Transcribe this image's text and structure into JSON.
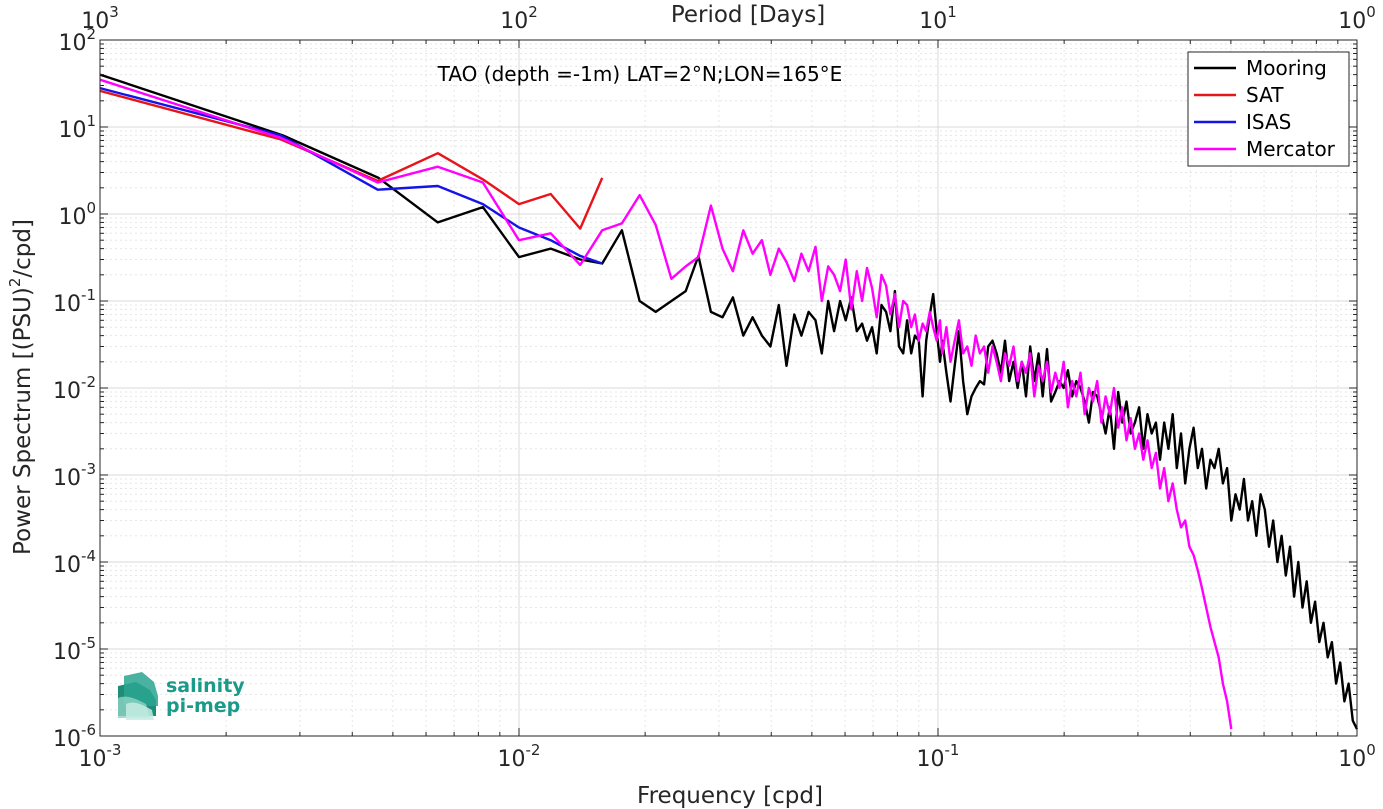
{
  "chart_data": {
    "type": "line",
    "title": "TAO (depth =-1m) LAT=2°N;LON=165°E",
    "xlabel": "Frequency [cpd]",
    "ylabel_base": "Power Spectrum [(PSU)",
    "ylabel_sup": "2",
    "ylabel_tail": "/cpd]",
    "top_xlabel": "Period [Days]",
    "x_scale": "log",
    "y_scale": "log",
    "xlim": [
      0.001,
      1
    ],
    "ylim": [
      1e-06,
      100
    ],
    "grid": true,
    "legend_position": "top-right",
    "xticks": [
      {
        "value": 0.001,
        "base": "10",
        "exp": "-3"
      },
      {
        "value": 0.01,
        "base": "10",
        "exp": "-2"
      },
      {
        "value": 0.1,
        "base": "10",
        "exp": "-1"
      },
      {
        "value": 1,
        "base": "10",
        "exp": "0"
      }
    ],
    "yticks": [
      {
        "value": 100,
        "base": "10",
        "exp": "2"
      },
      {
        "value": 10,
        "base": "10",
        "exp": "1"
      },
      {
        "value": 1,
        "base": "10",
        "exp": "0"
      },
      {
        "value": 0.1,
        "base": "10",
        "exp": "-1"
      },
      {
        "value": 0.01,
        "base": "10",
        "exp": "-2"
      },
      {
        "value": 0.001,
        "base": "10",
        "exp": "-3"
      },
      {
        "value": 0.0001,
        "base": "10",
        "exp": "-4"
      },
      {
        "value": 1e-05,
        "base": "10",
        "exp": "-5"
      },
      {
        "value": 1e-06,
        "base": "10",
        "exp": "-6"
      }
    ],
    "top_xticks": [
      {
        "value": 0.001,
        "base": "10",
        "exp": "3"
      },
      {
        "value": 0.01,
        "base": "10",
        "exp": "2"
      },
      {
        "value": 0.1,
        "base": "10",
        "exp": "1"
      },
      {
        "value": 1,
        "base": "10",
        "exp": "0"
      }
    ],
    "series": [
      {
        "name": "Mooring",
        "color": "#000000",
        "x": [
          0.001,
          0.00273,
          0.00462,
          0.0064,
          0.0082,
          0.01,
          0.0119,
          0.014,
          0.0158,
          0.0176,
          0.0194,
          0.0212,
          0.0231,
          0.025,
          0.0268,
          0.0287,
          0.0306,
          0.0324,
          0.0343,
          0.0361,
          0.038,
          0.0398,
          0.0417,
          0.0435,
          0.0454,
          0.0472,
          0.0491,
          0.051,
          0.0528,
          0.0547,
          0.0565,
          0.0584,
          0.0602,
          0.0621,
          0.064,
          0.0659,
          0.0677,
          0.0696,
          0.0714,
          0.0733,
          0.0752,
          0.077,
          0.0789,
          0.0807,
          0.0826,
          0.0844,
          0.0863,
          0.0881,
          0.09,
          0.0919,
          0.0937,
          0.0956,
          0.0974,
          0.0993,
          0.1011,
          0.1024,
          0.1047,
          0.1071,
          0.1096,
          0.1122,
          0.1148,
          0.1175,
          0.1202,
          0.123,
          0.1259,
          0.1288,
          0.1318,
          0.1349,
          0.138,
          0.1413,
          0.1445,
          0.1479,
          0.1514,
          0.1549,
          0.1585,
          0.1622,
          0.166,
          0.1698,
          0.1738,
          0.1778,
          0.182,
          0.1862,
          0.1905,
          0.195,
          0.1995,
          0.2042,
          0.2089,
          0.2138,
          0.2188,
          0.2239,
          0.2291,
          0.2344,
          0.2399,
          0.2455,
          0.2512,
          0.257,
          0.263,
          0.2692,
          0.2754,
          0.2818,
          0.2884,
          0.2951,
          0.302,
          0.309,
          0.3162,
          0.3236,
          0.3311,
          0.3388,
          0.3467,
          0.3548,
          0.3631,
          0.3715,
          0.3802,
          0.389,
          0.3981,
          0.4074,
          0.4169,
          0.4266,
          0.4365,
          0.4467,
          0.4571,
          0.4677,
          0.4786,
          0.4898,
          0.5012,
          0.5129,
          0.5248,
          0.537,
          0.5495,
          0.5623,
          0.5754,
          0.5888,
          0.6026,
          0.6166,
          0.631,
          0.6457,
          0.6607,
          0.6761,
          0.6918,
          0.7079,
          0.7244,
          0.7413,
          0.7586,
          0.7762,
          0.7943,
          0.8128,
          0.8318,
          0.8511,
          0.871,
          0.8913,
          0.912,
          0.9333,
          0.955,
          0.9772,
          1.0
        ],
        "y": [
          40,
          8,
          2.6,
          0.8,
          1.2,
          0.32,
          0.4,
          0.3,
          0.27,
          0.65,
          0.1,
          0.075,
          0.1,
          0.13,
          0.33,
          0.075,
          0.065,
          0.11,
          0.04,
          0.065,
          0.04,
          0.03,
          0.09,
          0.018,
          0.07,
          0.04,
          0.075,
          0.06,
          0.025,
          0.1,
          0.045,
          0.1,
          0.06,
          0.11,
          0.045,
          0.055,
          0.035,
          0.05,
          0.025,
          0.09,
          0.075,
          0.045,
          0.13,
          0.03,
          0.025,
          0.06,
          0.025,
          0.04,
          0.035,
          0.008,
          0.035,
          0.07,
          0.12,
          0.045,
          0.02,
          0.035,
          0.015,
          0.007,
          0.018,
          0.045,
          0.012,
          0.005,
          0.008,
          0.01,
          0.012,
          0.011,
          0.03,
          0.035,
          0.025,
          0.015,
          0.035,
          0.012,
          0.02,
          0.01,
          0.02,
          0.008,
          0.03,
          0.012,
          0.025,
          0.008,
          0.028,
          0.007,
          0.009,
          0.012,
          0.01,
          0.016,
          0.008,
          0.012,
          0.01,
          0.007,
          0.004,
          0.009,
          0.008,
          0.005,
          0.003,
          0.006,
          0.002,
          0.009,
          0.004,
          0.007,
          0.003,
          0.004,
          0.006,
          0.002,
          0.005,
          0.003,
          0.004,
          0.0015,
          0.004,
          0.002,
          0.005,
          0.0012,
          0.003,
          0.0008,
          0.002,
          0.0035,
          0.0012,
          0.002,
          0.0007,
          0.0015,
          0.0012,
          0.002,
          0.0008,
          0.0012,
          0.0003,
          0.0006,
          0.0004,
          0.0009,
          0.0003,
          0.0005,
          0.0002,
          0.0006,
          0.0004,
          0.00015,
          0.0003,
          0.0001,
          0.0002,
          7e-05,
          0.00015,
          4e-05,
          0.0001,
          3e-05,
          6e-05,
          2e-05,
          3.5e-05,
          1.2e-05,
          2e-05,
          8e-06,
          1.2e-05,
          4e-06,
          7e-06,
          2.5e-06,
          4e-06,
          1.5e-06,
          1.2e-06
        ]
      },
      {
        "name": "SAT",
        "color": "#e8141c",
        "x": [
          0.001,
          0.0027,
          0.0046,
          0.0064,
          0.0082,
          0.01,
          0.0119,
          0.014,
          0.0158
        ],
        "y": [
          26,
          7.2,
          2.4,
          5,
          2.5,
          1.3,
          1.7,
          0.68,
          2.6
        ]
      },
      {
        "name": "ISAS",
        "color": "#1414e8",
        "x": [
          0.001,
          0.0027,
          0.0046,
          0.0064,
          0.0082,
          0.01,
          0.0119,
          0.014,
          0.0158
        ],
        "y": [
          28,
          8,
          1.9,
          2.1,
          1.3,
          0.7,
          0.5,
          0.33,
          0.27
        ]
      },
      {
        "name": "Mercator",
        "color": "#ff00ff",
        "x": [
          0.001,
          0.0027,
          0.0046,
          0.0064,
          0.0082,
          0.01,
          0.0119,
          0.014,
          0.0158,
          0.0176,
          0.0194,
          0.0212,
          0.0231,
          0.025,
          0.0268,
          0.0287,
          0.0306,
          0.0324,
          0.0343,
          0.0361,
          0.038,
          0.0398,
          0.0417,
          0.0435,
          0.0454,
          0.0472,
          0.0491,
          0.051,
          0.0528,
          0.0547,
          0.0565,
          0.0584,
          0.0602,
          0.0621,
          0.064,
          0.0659,
          0.0677,
          0.0696,
          0.0714,
          0.0733,
          0.0752,
          0.077,
          0.0789,
          0.0807,
          0.0826,
          0.0844,
          0.0863,
          0.0881,
          0.09,
          0.0919,
          0.0937,
          0.0956,
          0.0974,
          0.0993,
          0.1011,
          0.1024,
          0.1047,
          0.1071,
          0.1096,
          0.1122,
          0.1148,
          0.1175,
          0.1202,
          0.123,
          0.1259,
          0.1288,
          0.1318,
          0.1349,
          0.138,
          0.1413,
          0.1445,
          0.1479,
          0.1514,
          0.1549,
          0.1585,
          0.1622,
          0.166,
          0.1698,
          0.1738,
          0.1778,
          0.182,
          0.1862,
          0.1905,
          0.195,
          0.1995,
          0.2042,
          0.2089,
          0.2138,
          0.2188,
          0.2239,
          0.2291,
          0.2344,
          0.2399,
          0.2455,
          0.2512,
          0.257,
          0.263,
          0.2692,
          0.2754,
          0.2818,
          0.2884,
          0.2951,
          0.302,
          0.309,
          0.3162,
          0.3236,
          0.3311,
          0.3388,
          0.3467,
          0.3548,
          0.3631,
          0.3715,
          0.3802,
          0.389,
          0.3981,
          0.4074,
          0.4169,
          0.4266,
          0.4365,
          0.4467,
          0.4571,
          0.4677,
          0.4786,
          0.4898,
          0.5012
        ],
        "y": [
          35,
          7.5,
          2.3,
          3.5,
          2.3,
          0.5,
          0.6,
          0.26,
          0.65,
          0.78,
          1.65,
          0.75,
          0.18,
          0.25,
          0.32,
          1.25,
          0.4,
          0.22,
          0.65,
          0.35,
          0.5,
          0.2,
          0.4,
          0.28,
          0.17,
          0.35,
          0.22,
          0.42,
          0.1,
          0.25,
          0.2,
          0.13,
          0.3,
          0.08,
          0.22,
          0.1,
          0.24,
          0.14,
          0.065,
          0.2,
          0.15,
          0.07,
          0.12,
          0.05,
          0.1,
          0.09,
          0.05,
          0.07,
          0.035,
          0.055,
          0.045,
          0.075,
          0.05,
          0.035,
          0.06,
          0.025,
          0.05,
          0.02,
          0.035,
          0.06,
          0.025,
          0.03,
          0.018,
          0.04,
          0.025,
          0.03,
          0.015,
          0.03,
          0.02,
          0.012,
          0.025,
          0.018,
          0.03,
          0.012,
          0.02,
          0.015,
          0.025,
          0.008,
          0.018,
          0.012,
          0.02,
          0.009,
          0.015,
          0.01,
          0.02,
          0.006,
          0.012,
          0.008,
          0.015,
          0.005,
          0.01,
          0.007,
          0.012,
          0.004,
          0.008,
          0.005,
          0.01,
          0.0035,
          0.006,
          0.0025,
          0.0045,
          0.002,
          0.003,
          0.0015,
          0.0025,
          0.0012,
          0.0018,
          0.0007,
          0.0012,
          0.0005,
          0.0008,
          0.0004,
          0.00025,
          0.0003,
          0.00015,
          0.00012,
          8e-05,
          5e-05,
          3e-05,
          1.8e-05,
          1.2e-05,
          8e-06,
          4e-06,
          2.5e-06,
          1.2e-06
        ]
      }
    ]
  },
  "logo": {
    "line1": "salinity",
    "line2": "pi-mep",
    "color": "#1a9a88"
  }
}
